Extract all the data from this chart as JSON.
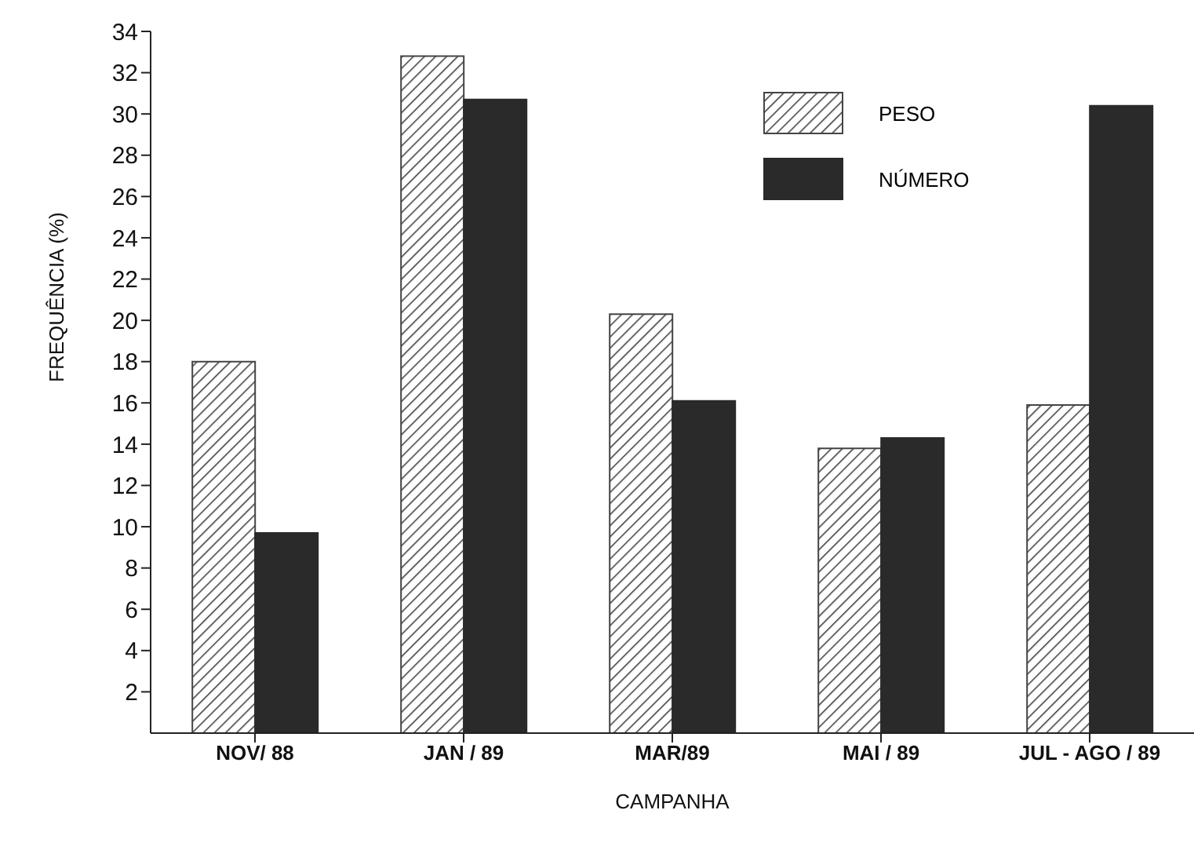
{
  "chart_data": {
    "type": "bar",
    "xlabel": "CAMPANHA",
    "ylabel": "FREQUÊNCIA   (%)",
    "categories": [
      "NOV/ 88",
      "JAN / 89",
      "MAR/89",
      "MAI / 89",
      "JUL - AGO / 89"
    ],
    "series": [
      {
        "name": "PESO",
        "color": "#444444",
        "values": [
          18.0,
          32.8,
          20.3,
          13.8,
          15.9
        ]
      },
      {
        "name": "NÚMERO",
        "color": "#2a2a2a",
        "values": [
          9.7,
          30.7,
          16.1,
          14.3,
          30.4
        ]
      }
    ],
    "ylim": [
      0,
      34
    ],
    "yticks": [
      2,
      4,
      6,
      8,
      10,
      12,
      14,
      16,
      18,
      20,
      22,
      24,
      26,
      28,
      30,
      32,
      34
    ],
    "grid": false,
    "legend": "top right"
  }
}
